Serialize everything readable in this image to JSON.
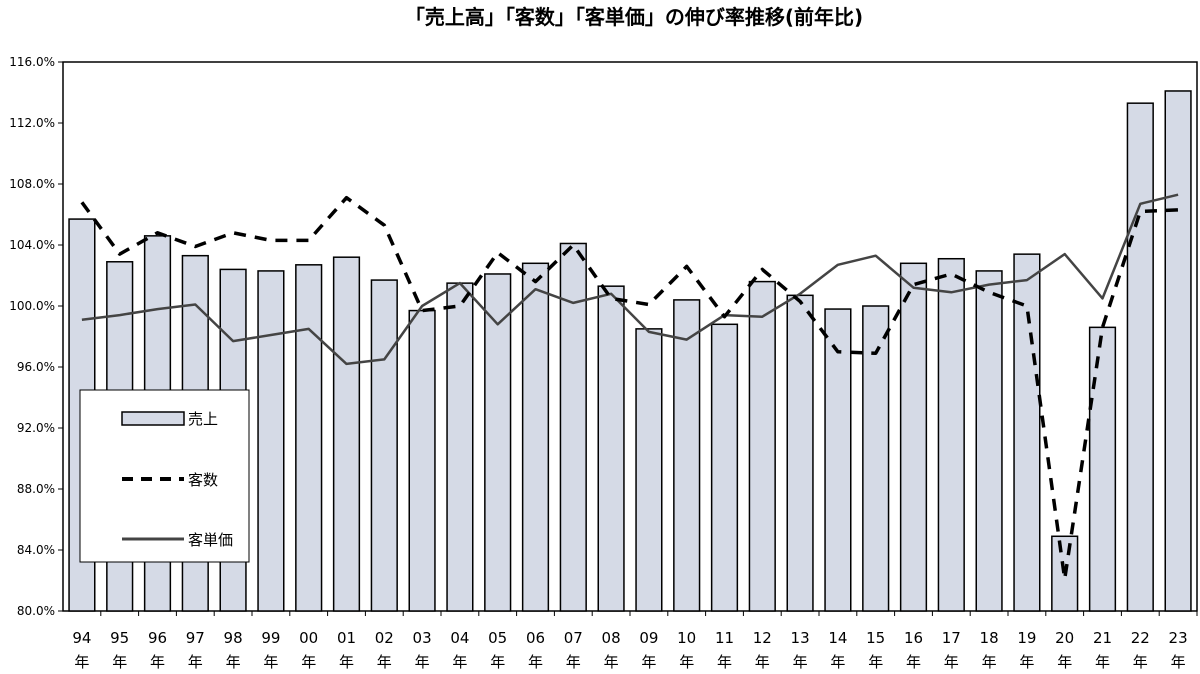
{
  "chart_data": {
    "type": "bar",
    "title": "「売上高」「客数」「客単価」の伸び率推移(前年比)",
    "xlabel": "",
    "ylabel": "",
    "ylim": [
      80,
      116
    ],
    "ytick_step": 4,
    "ytick_labels": [
      "80.0%",
      "84.0%",
      "88.0%",
      "92.0%",
      "96.0%",
      "100.0%",
      "104.0%",
      "108.0%",
      "112.0%",
      "116.0%"
    ],
    "categories": [
      "94",
      "95",
      "96",
      "97",
      "98",
      "99",
      "00",
      "01",
      "02",
      "03",
      "04",
      "05",
      "06",
      "07",
      "08",
      "09",
      "10",
      "11",
      "12",
      "13",
      "14",
      "15",
      "16",
      "17",
      "18",
      "19",
      "20",
      "21",
      "22",
      "23"
    ],
    "category_suffix": "年",
    "grid": false,
    "legend_position": "left-bottom",
    "series": [
      {
        "name": "売上",
        "type": "bar",
        "color": "#d5dae6",
        "values": [
          105.7,
          102.9,
          104.6,
          103.3,
          102.4,
          102.3,
          102.7,
          103.2,
          101.7,
          99.7,
          101.5,
          102.1,
          102.8,
          104.1,
          101.3,
          98.5,
          100.4,
          98.8,
          101.6,
          100.7,
          99.8,
          100.0,
          102.8,
          103.1,
          102.3,
          103.4,
          84.9,
          98.6,
          113.3,
          114.1
        ]
      },
      {
        "name": "客数",
        "type": "line",
        "style": "dashed",
        "color": "#000000",
        "values": [
          106.8,
          103.4,
          104.8,
          103.9,
          104.8,
          104.3,
          104.3,
          107.1,
          105.3,
          99.7,
          100.0,
          103.5,
          101.6,
          104.0,
          100.5,
          100.1,
          102.6,
          99.3,
          102.4,
          100.3,
          97.0,
          96.9,
          101.4,
          102.1,
          100.9,
          100.0,
          82.1,
          98.6,
          106.2,
          106.3
        ]
      },
      {
        "name": "客単価",
        "type": "line",
        "style": "solid",
        "color": "#444444",
        "values": [
          99.1,
          99.4,
          99.8,
          100.1,
          97.7,
          98.1,
          98.5,
          96.2,
          96.5,
          100.0,
          101.5,
          98.8,
          101.1,
          100.2,
          100.8,
          98.3,
          97.8,
          99.4,
          99.3,
          100.8,
          102.7,
          103.3,
          101.2,
          100.9,
          101.4,
          101.7,
          103.4,
          100.5,
          106.7,
          107.3
        ]
      }
    ]
  }
}
